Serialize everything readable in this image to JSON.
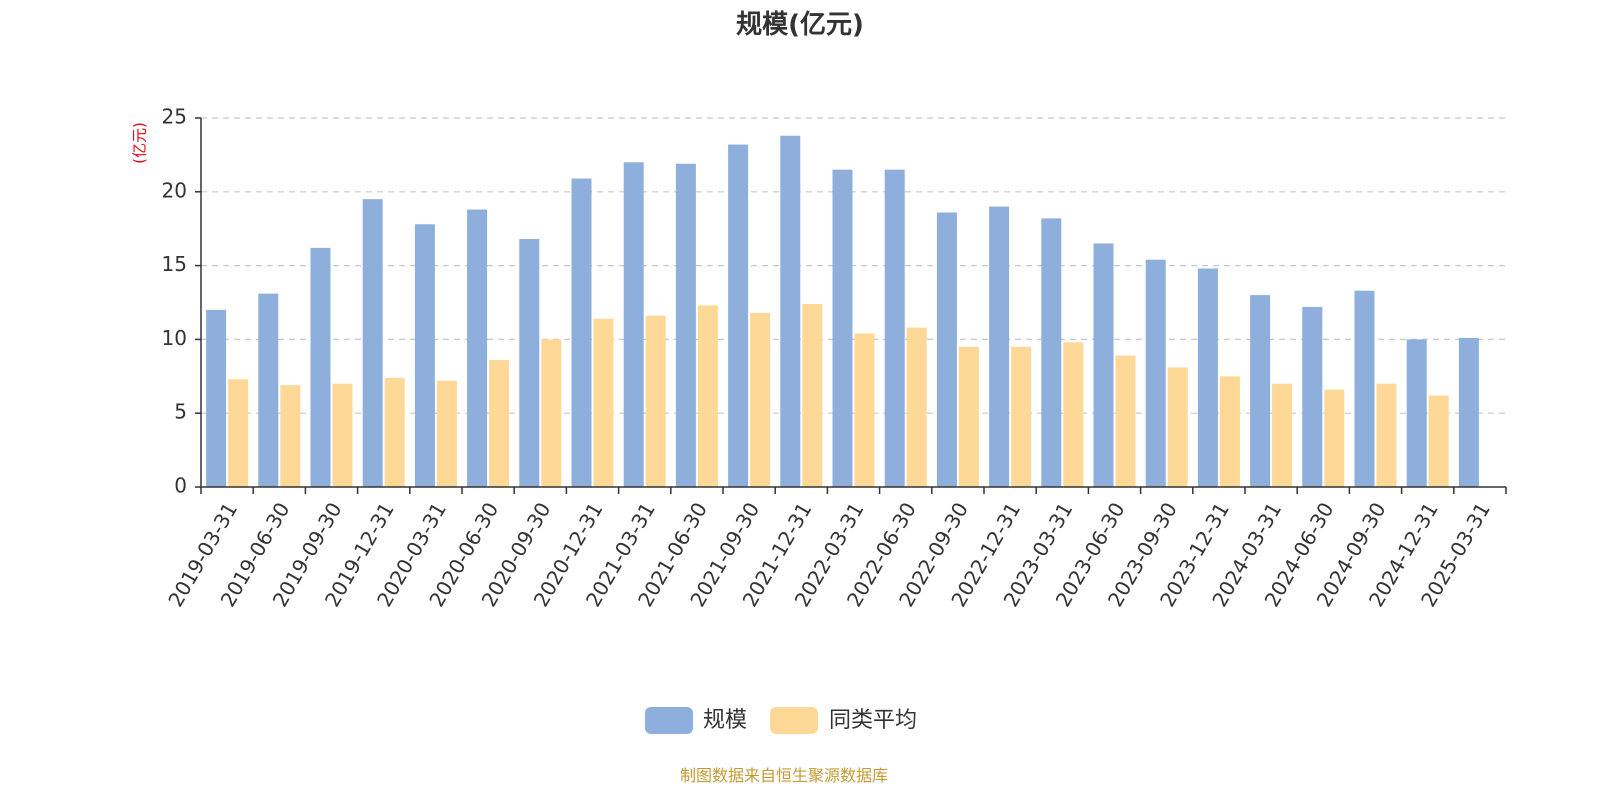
{
  "chart_data": {
    "type": "bar",
    "title": "规模(亿元)",
    "ylabel": "(亿元)",
    "ylim": [
      0,
      25
    ],
    "yticks": [
      0,
      5,
      10,
      15,
      20,
      25
    ],
    "grid": true,
    "legend_position": "bottom",
    "categories": [
      "2019-03-31",
      "2019-06-30",
      "2019-09-30",
      "2019-12-31",
      "2020-03-31",
      "2020-06-30",
      "2020-09-30",
      "2020-12-31",
      "2021-03-31",
      "2021-06-30",
      "2021-09-30",
      "2021-12-31",
      "2022-03-31",
      "2022-06-30",
      "2022-09-30",
      "2022-12-31",
      "2023-03-31",
      "2023-06-30",
      "2023-09-30",
      "2023-12-31",
      "2024-03-31",
      "2024-06-30",
      "2024-09-30",
      "2024-12-31",
      "2025-03-31"
    ],
    "series": [
      {
        "name": "规模",
        "color": "#8eaedb",
        "values": [
          12.0,
          13.1,
          16.2,
          19.5,
          17.8,
          18.8,
          16.8,
          20.9,
          22.0,
          21.9,
          23.2,
          23.8,
          21.5,
          21.5,
          18.6,
          19.0,
          18.2,
          16.5,
          15.4,
          14.8,
          13.0,
          12.2,
          13.3,
          10.0,
          10.1
        ]
      },
      {
        "name": "同类平均",
        "color": "#fdd897",
        "values": [
          7.3,
          6.9,
          7.0,
          7.4,
          7.2,
          8.6,
          10.0,
          11.4,
          11.6,
          12.3,
          11.8,
          12.4,
          10.4,
          10.8,
          9.5,
          9.5,
          9.8,
          8.9,
          8.1,
          7.5,
          7.0,
          6.6,
          7.0,
          6.2,
          null
        ]
      }
    ]
  },
  "source_text": "制图数据来自恒生聚源数据库",
  "source_color": "#c49a35",
  "axis_color": "#333333",
  "grid_color": "#c8c8c8"
}
